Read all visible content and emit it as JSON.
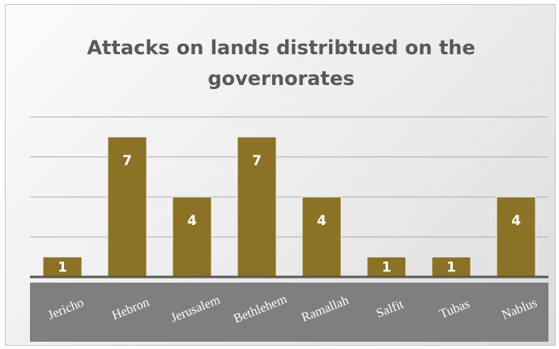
{
  "chart_data": {
    "type": "bar",
    "title_lines": [
      "Attacks on lands distribtued on the",
      "governorates"
    ],
    "categories": [
      "Jericho",
      "Hebron",
      "Jerusalem",
      "Bethlehem",
      "Ramallah",
      "Salfit",
      "Tubas",
      "Nablus"
    ],
    "values": [
      1,
      7,
      4,
      7,
      4,
      1,
      1,
      4
    ],
    "xlabel": "",
    "ylabel": "",
    "ylim": [
      0,
      8
    ],
    "grid": true,
    "legend": "none",
    "bar_color": "#8b7225",
    "label_band_color": "#7f7f7f"
  }
}
